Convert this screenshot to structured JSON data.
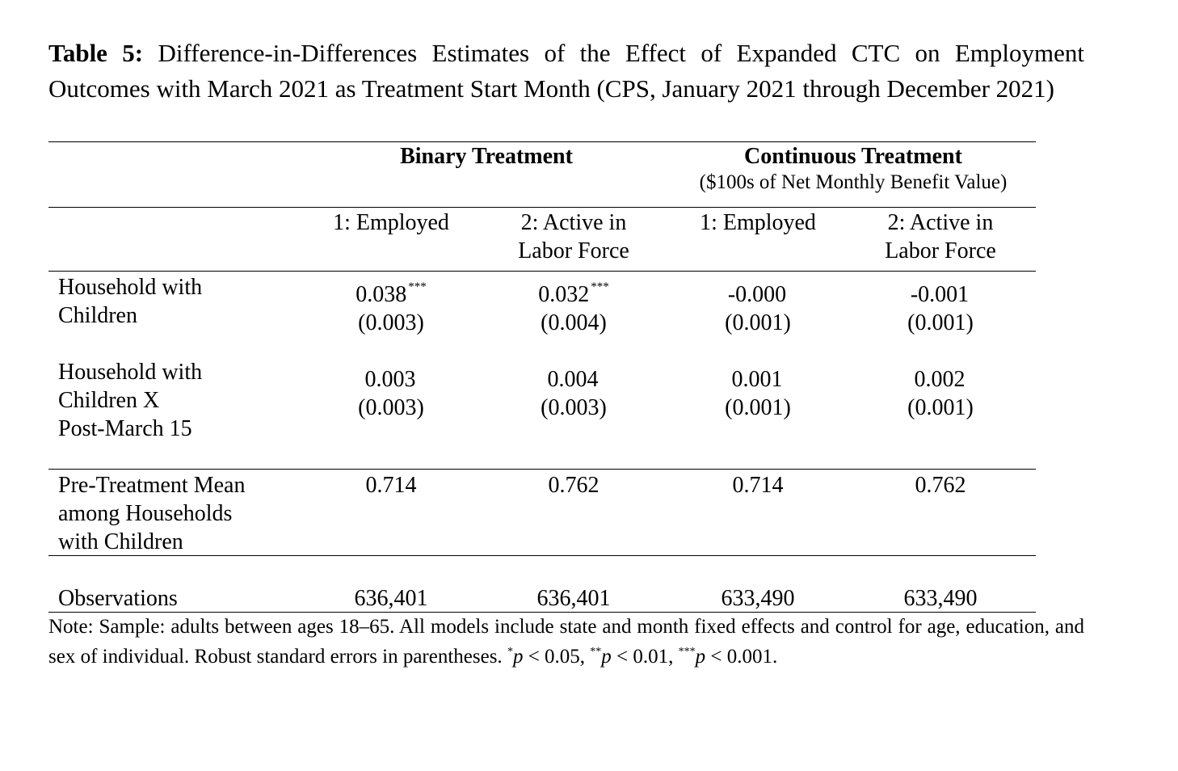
{
  "caption": {
    "label": "Table 5:",
    "text": "Difference-in-Differences Estimates of the Effect of Expanded CTC on Employment Outcomes with March 2021 as Treatment Start Month (CPS, January 2021 through December 2021)"
  },
  "groups": {
    "binary": "Binary Treatment",
    "continuous": "Continuous Treatment",
    "continuous_sub": "($100s of Net Monthly Benefit Value)"
  },
  "columns": [
    {
      "line1": "1: Employed",
      "line2": ""
    },
    {
      "line1": "2: Active in",
      "line2": "Labor Force"
    },
    {
      "line1": "1: Employed",
      "line2": ""
    },
    {
      "line1": "2: Active in",
      "line2": "Labor Force"
    }
  ],
  "rows": [
    {
      "label_lines": [
        "Household with",
        "Children"
      ],
      "cells": [
        {
          "est": "0.038",
          "stars": "***",
          "se": "(0.003)"
        },
        {
          "est": "0.032",
          "stars": "***",
          "se": "(0.004)"
        },
        {
          "est": "-0.000",
          "stars": "",
          "se": "(0.001)"
        },
        {
          "est": "-0.001",
          "stars": "",
          "se": "(0.001)"
        }
      ]
    },
    {
      "label_lines": [
        "Household with",
        "Children X",
        "Post-March 15"
      ],
      "cells": [
        {
          "est": "0.003",
          "stars": "",
          "se": "(0.003)"
        },
        {
          "est": "0.004",
          "stars": "",
          "se": "(0.003)"
        },
        {
          "est": "0.001",
          "stars": "",
          "se": "(0.001)"
        },
        {
          "est": "0.002",
          "stars": "",
          "se": "(0.001)"
        }
      ]
    }
  ],
  "pretreatment": {
    "label_lines": [
      "Pre-Treatment Mean",
      "among Households",
      "with Children"
    ],
    "values": [
      "0.714",
      "0.762",
      "0.714",
      "0.762"
    ]
  },
  "observations": {
    "label": "Observations",
    "values": [
      "636,401",
      "636,401",
      "633,490",
      "633,490"
    ]
  },
  "note": {
    "prefix": "Note: Sample: adults between ages 18–65. All models include state and month fixed effects and control for age, education, and sex of individual. Robust standard errors in parentheses.",
    "sig": [
      {
        "stars": "*",
        "p": "p",
        "rel": " < 0.05,"
      },
      {
        "stars": "**",
        "p": "p",
        "rel": " < 0.01,"
      },
      {
        "stars": "***",
        "p": "p",
        "rel": " < 0.001."
      }
    ]
  }
}
